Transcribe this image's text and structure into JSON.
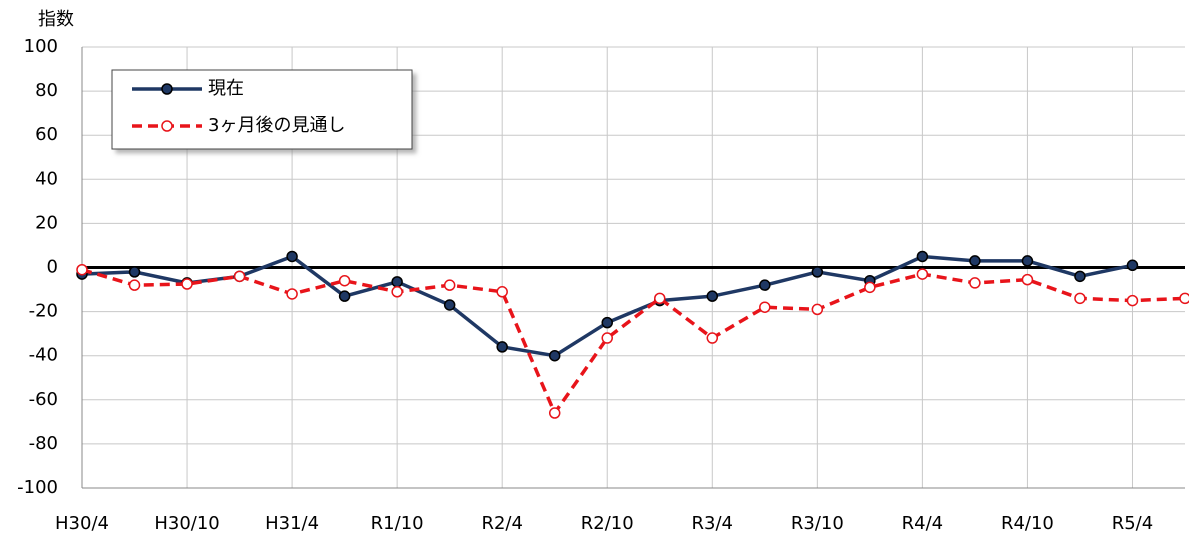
{
  "chart_data": {
    "type": "line",
    "y_label": "指数",
    "categories": [
      "H30/4",
      null,
      "H30/10",
      null,
      "H31/4",
      null,
      "R1/10",
      null,
      "R2/4",
      null,
      "R2/10",
      null,
      "R3/4",
      null,
      "R3/10",
      null,
      "R4/4",
      null,
      "R4/10",
      null,
      "R5/4",
      null
    ],
    "series": [
      {
        "name": "現在",
        "color": "#1f3864",
        "line_style": "solid",
        "marker_fill": "#1f3864",
        "values": [
          -3,
          -2,
          -7,
          -4,
          5,
          -13,
          -6.5,
          -17,
          -36,
          -40,
          -25,
          -15,
          -13,
          -8,
          -2,
          -6,
          5,
          3,
          3,
          -4,
          1,
          null
        ]
      },
      {
        "name": "3ヶ月後の見通し",
        "color": "#e8141a",
        "line_style": "dashed",
        "marker_fill": "#ffffff",
        "values": [
          -1,
          -8,
          -7.5,
          -4,
          -12,
          -6,
          -11,
          -8,
          -11,
          -66,
          -32,
          -14,
          -32,
          -18,
          -19,
          -9,
          -3,
          -7,
          -5.5,
          -14,
          -15,
          -14
        ]
      }
    ],
    "ylim": [
      -100,
      100
    ],
    "yticks": [
      -100,
      -80,
      -60,
      -40,
      -20,
      0,
      20,
      40,
      60,
      80,
      100
    ],
    "grid": true,
    "legend": "upper-left"
  }
}
